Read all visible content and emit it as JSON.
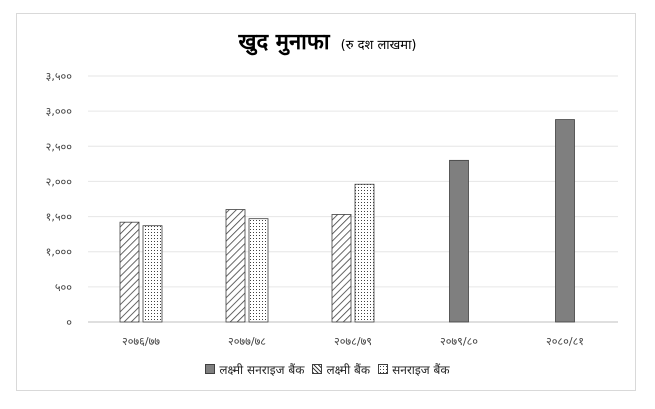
{
  "chart_data": {
    "type": "bar",
    "title": "खुद मुनाफा",
    "subtitle": "(रु दश लाखमा)",
    "categories": [
      "२०७६/७७",
      "२०७७/७८",
      "२०७८/७९",
      "२०७९/८०",
      "२०८०/८१"
    ],
    "series": [
      {
        "name": "लक्ष्मी सनराइज बैंक",
        "values": [
          null,
          null,
          null,
          2300,
          2880
        ],
        "color": "#7f7f7f",
        "pattern": "solid"
      },
      {
        "name": "लक्ष्मी बैंक",
        "values": [
          1420,
          1600,
          1530,
          null,
          null
        ],
        "color": "#404040",
        "pattern": "diagonal-stripes"
      },
      {
        "name": "सनराइज बैंक",
        "values": [
          1370,
          1470,
          1960,
          null,
          null
        ],
        "color": "#595959",
        "pattern": "dots"
      }
    ],
    "ylim": [
      0,
      3500
    ],
    "yticks": [
      0,
      500,
      1000,
      1500,
      2000,
      2500,
      3000,
      3500
    ],
    "ytick_labels": [
      "०",
      "५००",
      "१,०००",
      "१,५००",
      "२,०००",
      "२,५००",
      "३,०००",
      "३,५००"
    ],
    "grid": true,
    "legend_position": "bottom"
  }
}
